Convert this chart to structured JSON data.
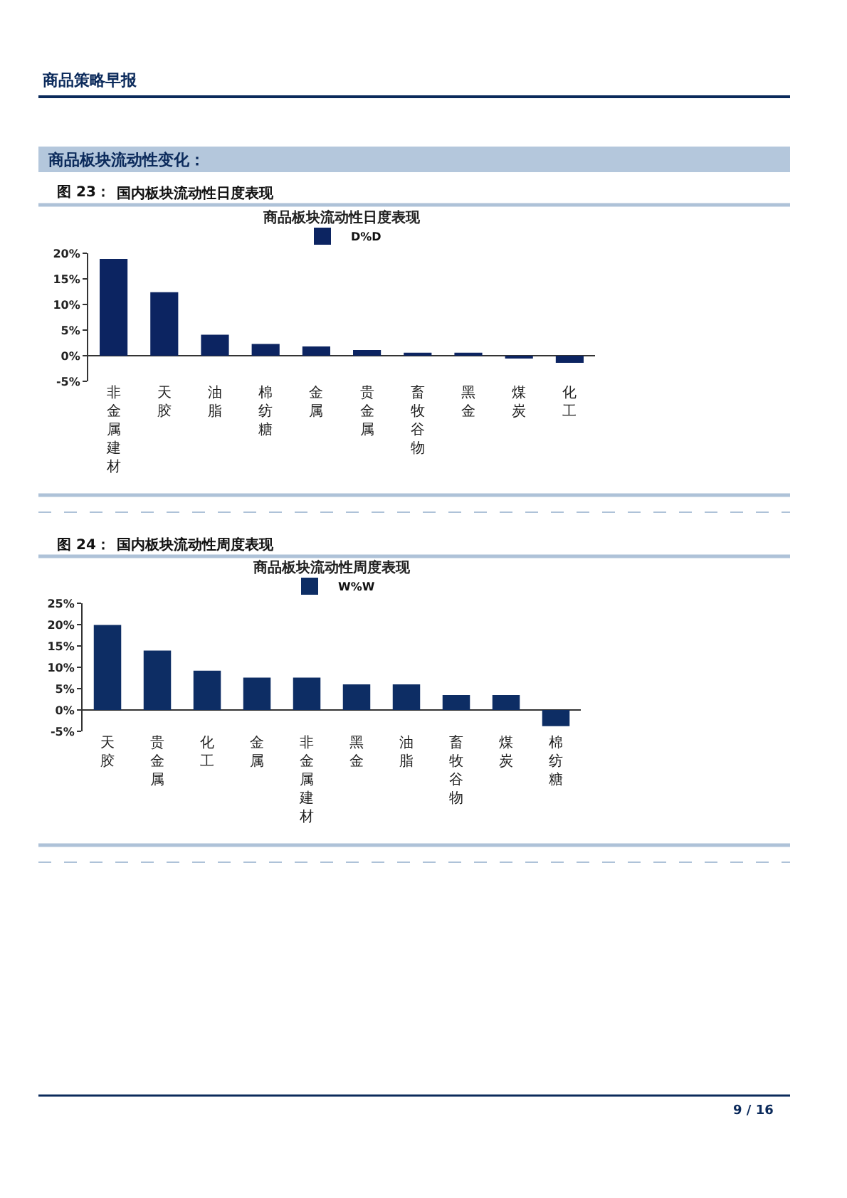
{
  "chart_data": [
    {
      "type": "bar",
      "title": "商品板块流动性日度表现",
      "annotations": [
        "商品策略早报",
        "商品板块流动性变化：",
        "图 23：",
        "国内板块流动性日度表现"
      ],
      "categories": [
        "非金属建材",
        "天胶",
        "油脂",
        "棉纺糖",
        "金属",
        "贵金属",
        "畜牧谷物",
        "黑金",
        "煤炭",
        "化工"
      ],
      "series": [
        {
          "name": "D%D",
          "color": "#0c2461",
          "values": [
            18.9,
            12.4,
            4.1,
            2.3,
            1.8,
            1.1,
            0.6,
            0.6,
            -0.4,
            -1.4
          ]
        }
      ],
      "ylim": [
        -5,
        20
      ],
      "yticks": [
        {
          "value": -5,
          "label": "-5%"
        },
        {
          "value": 0,
          "label": "0%"
        },
        {
          "value": 5,
          "label": "5%"
        },
        {
          "value": 10,
          "label": "10%"
        },
        {
          "value": 15,
          "label": "15%"
        },
        {
          "value": 20,
          "label": "20%"
        }
      ],
      "legend": "top"
    },
    {
      "type": "bar",
      "title": "商品板块流动性周度表现",
      "annotations": [
        "图 24：",
        "国内板块流动性周度表现",
        "9 / 16"
      ],
      "categories": [
        "天胶",
        "贵金属",
        "化工",
        "金属",
        "非金属建材",
        "黑金",
        "油脂",
        "畜牧谷物",
        "煤炭",
        "棉纺糖"
      ],
      "series": [
        {
          "name": "W%W",
          "color": "#0d2d64",
          "values": [
            19.9,
            13.9,
            9.2,
            7.6,
            7.6,
            6.0,
            6.0,
            3.5,
            3.5,
            -3.8
          ]
        }
      ],
      "ylim": [
        -5,
        25
      ],
      "yticks": [
        {
          "value": -5,
          "label": "-5%"
        },
        {
          "value": 0,
          "label": "0%"
        },
        {
          "value": 5,
          "label": "5%"
        },
        {
          "value": 10,
          "label": "10%"
        },
        {
          "value": 15,
          "label": "15%"
        },
        {
          "value": 20,
          "label": "20%"
        },
        {
          "value": 25,
          "label": "25%"
        }
      ],
      "legend": "top"
    }
  ]
}
